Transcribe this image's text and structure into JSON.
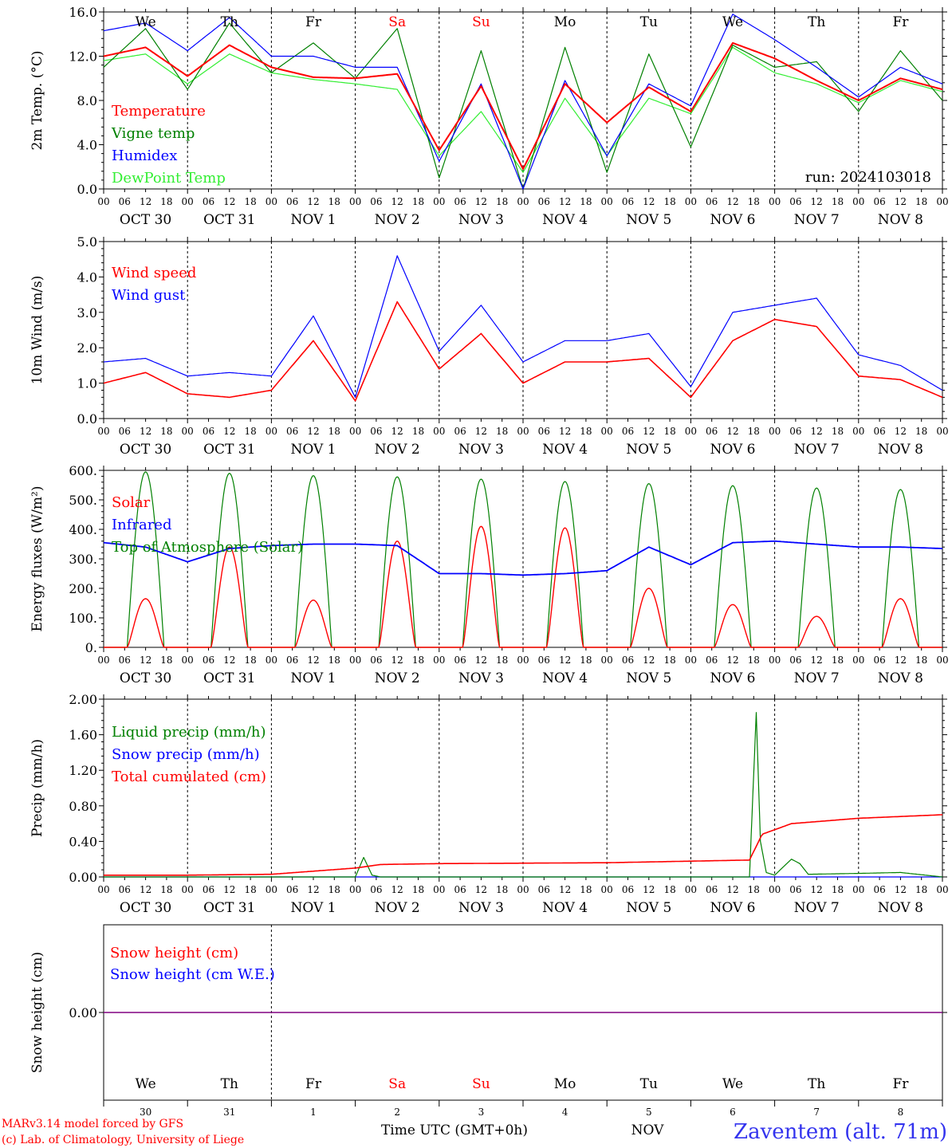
{
  "colors": {
    "red": "#ff0000",
    "green": "#008000",
    "blue": "#0000ff",
    "light_green": "#33ee33",
    "purple": "#800080",
    "station_blue": "#3333ee"
  },
  "days": {
    "dow": [
      "We",
      "Th",
      "Fr",
      "Sa",
      "Su",
      "Mo",
      "Tu",
      "We",
      "Th",
      "Fr"
    ],
    "weekend": [
      false,
      false,
      false,
      true,
      true,
      false,
      false,
      false,
      false,
      false
    ],
    "labels": [
      "OCT 30",
      "OCT 31",
      "NOV  1",
      "NOV  2",
      "NOV  3",
      "NOV  4",
      "NOV  5",
      "NOV  6",
      "NOV  7",
      "NOV  8"
    ],
    "nums": [
      "30",
      "31",
      "1",
      "2",
      "3",
      "4",
      "5",
      "6",
      "7",
      "8"
    ],
    "hours": [
      "00",
      "06",
      "12",
      "18"
    ],
    "end_hour": "00"
  },
  "run": "run: 2024103018",
  "footer": {
    "model": "MARv3.14 model forced by GFS",
    "lab": "(c) Lab. of Climatology, University of Liege",
    "xlabel": "Time UTC (GMT+0h)",
    "month": "NOV",
    "station": "Zaventem (alt. 71m)"
  },
  "chart_data": [
    {
      "type": "line",
      "ylabel": "2m Temp. (°C)",
      "ylim": [
        0,
        16
      ],
      "yticks": [
        "0.0",
        "4.0",
        "8.0",
        "12.0",
        "16.0"
      ],
      "legend": [
        "Temperature",
        "Vigne temp",
        "Humidex",
        "DewPoint Temp"
      ],
      "x_days": [
        0,
        0.5,
        1,
        1.5,
        2,
        2.5,
        3,
        3.5,
        4,
        4.5,
        5,
        5.5,
        6,
        6.5,
        7,
        7.5,
        8,
        8.5,
        9,
        9.5,
        10
      ],
      "series": [
        {
          "name": "Temperature",
          "values": [
            12.0,
            12.8,
            10.2,
            13.0,
            11.0,
            10.1,
            10.0,
            10.4,
            3.5,
            9.3,
            1.8,
            9.5,
            6.0,
            9.2,
            7.0,
            13.2,
            11.8,
            9.8,
            8.0,
            10.0,
            9.0
          ]
        },
        {
          "name": "Vigne temp",
          "values": [
            11.0,
            14.5,
            9.0,
            15.0,
            10.5,
            13.2,
            10.0,
            14.5,
            1.0,
            12.5,
            0.0,
            12.8,
            1.5,
            12.2,
            3.8,
            13.0,
            11.0,
            11.5,
            7.0,
            12.5,
            8.0
          ]
        },
        {
          "name": "Humidex",
          "values": [
            14.3,
            15.0,
            12.5,
            15.5,
            12.0,
            12.0,
            11.0,
            11.0,
            2.5,
            9.5,
            0.0,
            9.8,
            3.0,
            9.5,
            7.5,
            15.8,
            13.5,
            11.0,
            8.3,
            11.0,
            9.5
          ]
        },
        {
          "name": "DewPoint Temp",
          "values": [
            11.6,
            12.2,
            9.5,
            12.2,
            10.5,
            9.9,
            9.5,
            9.0,
            3.0,
            7.0,
            1.5,
            8.2,
            3.0,
            8.2,
            6.8,
            12.8,
            10.5,
            9.5,
            7.8,
            9.8,
            8.8
          ]
        }
      ]
    },
    {
      "type": "line",
      "ylabel": "10m Wind (m/s)",
      "ylim": [
        0,
        5
      ],
      "yticks": [
        "0.0",
        "1.0",
        "2.0",
        "3.0",
        "4.0",
        "5.0"
      ],
      "legend": [
        "Wind speed",
        "Wind gust"
      ],
      "x_days": [
        0,
        0.5,
        1,
        1.5,
        2,
        2.5,
        3,
        3.5,
        4,
        4.5,
        5,
        5.5,
        6,
        6.5,
        7,
        7.5,
        8,
        8.5,
        9,
        9.5,
        10
      ],
      "series": [
        {
          "name": "Wind speed",
          "values": [
            1.0,
            1.3,
            0.7,
            0.6,
            0.8,
            2.2,
            0.5,
            3.3,
            1.4,
            2.4,
            1.0,
            1.6,
            1.6,
            1.7,
            0.6,
            2.2,
            2.8,
            2.6,
            1.2,
            1.1,
            0.6
          ]
        },
        {
          "name": "Wind gust",
          "values": [
            1.6,
            1.7,
            1.2,
            1.3,
            1.2,
            2.9,
            0.6,
            4.6,
            1.9,
            3.2,
            1.6,
            2.2,
            2.2,
            2.4,
            0.9,
            3.0,
            3.2,
            3.4,
            1.8,
            1.5,
            0.8
          ]
        }
      ]
    },
    {
      "type": "line",
      "ylabel": "Energy fluxes (W/m²)",
      "ylim": [
        0,
        600
      ],
      "yticks": [
        "0.",
        "100.",
        "200.",
        "300.",
        "400.",
        "500.",
        "600."
      ],
      "legend": [
        "Solar",
        "Infrared",
        "Top of Atmosphere (Solar)"
      ],
      "solar_peaks": [
        165,
        340,
        160,
        360,
        410,
        405,
        200,
        145,
        105,
        165
      ],
      "toa_peaks": [
        595,
        590,
        582,
        578,
        570,
        562,
        555,
        548,
        540,
        535
      ],
      "infrared_x_days": [
        0,
        0.5,
        1,
        1.5,
        2,
        2.5,
        3,
        3.5,
        4,
        4.5,
        5,
        5.5,
        6,
        6.5,
        7,
        7.5,
        8,
        8.5,
        9,
        9.5,
        10
      ],
      "infrared_values": [
        355,
        340,
        290,
        335,
        345,
        350,
        350,
        345,
        250,
        250,
        245,
        250,
        260,
        340,
        280,
        355,
        360,
        350,
        340,
        340,
        335
      ]
    },
    {
      "type": "line",
      "ylabel": "Precip (mm/h)",
      "ylim": [
        0,
        2
      ],
      "yticks": [
        "0.00",
        "0.40",
        "0.80",
        "1.20",
        "1.60",
        "2.00"
      ],
      "legend": [
        "Liquid precip (mm/h)",
        "Snow precip (mm/h)",
        "Total cumulated (cm)"
      ],
      "series": [
        {
          "name": "Total cumulated (cm)",
          "x_days": [
            0,
            1,
            2,
            3,
            3.3,
            4,
            6,
            7.7,
            7.85,
            8.2,
            9,
            10
          ],
          "values": [
            0.02,
            0.02,
            0.03,
            0.1,
            0.14,
            0.15,
            0.16,
            0.19,
            0.48,
            0.6,
            0.66,
            0.7
          ]
        },
        {
          "name": "Liquid precip (mm/h)",
          "x_days": [
            0,
            3,
            3.1,
            3.2,
            3.3,
            7.7,
            7.78,
            7.83,
            7.9,
            8.0,
            8.2,
            8.3,
            8.4,
            9,
            9.5,
            10
          ],
          "values": [
            0,
            0,
            0.22,
            0.02,
            0,
            0,
            1.85,
            0.4,
            0.05,
            0.02,
            0.2,
            0.15,
            0.03,
            0.04,
            0.05,
            0
          ]
        },
        {
          "name": "Snow precip (mm/h)",
          "x_days": [
            0,
            10
          ],
          "values": [
            0,
            0
          ]
        }
      ]
    },
    {
      "type": "line",
      "ylabel": "Snow height (cm)",
      "yticks": [
        "0.00"
      ],
      "legend": [
        "Snow height (cm)",
        "Snow height (cm W.E.)"
      ],
      "series": [
        {
          "name": "Snow height (cm)",
          "x_days": [
            0,
            10
          ],
          "values": [
            0,
            0
          ]
        },
        {
          "name": "Snow height (cm W.E.)",
          "x_days": [
            0,
            10
          ],
          "values": [
            0,
            0
          ]
        }
      ]
    }
  ]
}
